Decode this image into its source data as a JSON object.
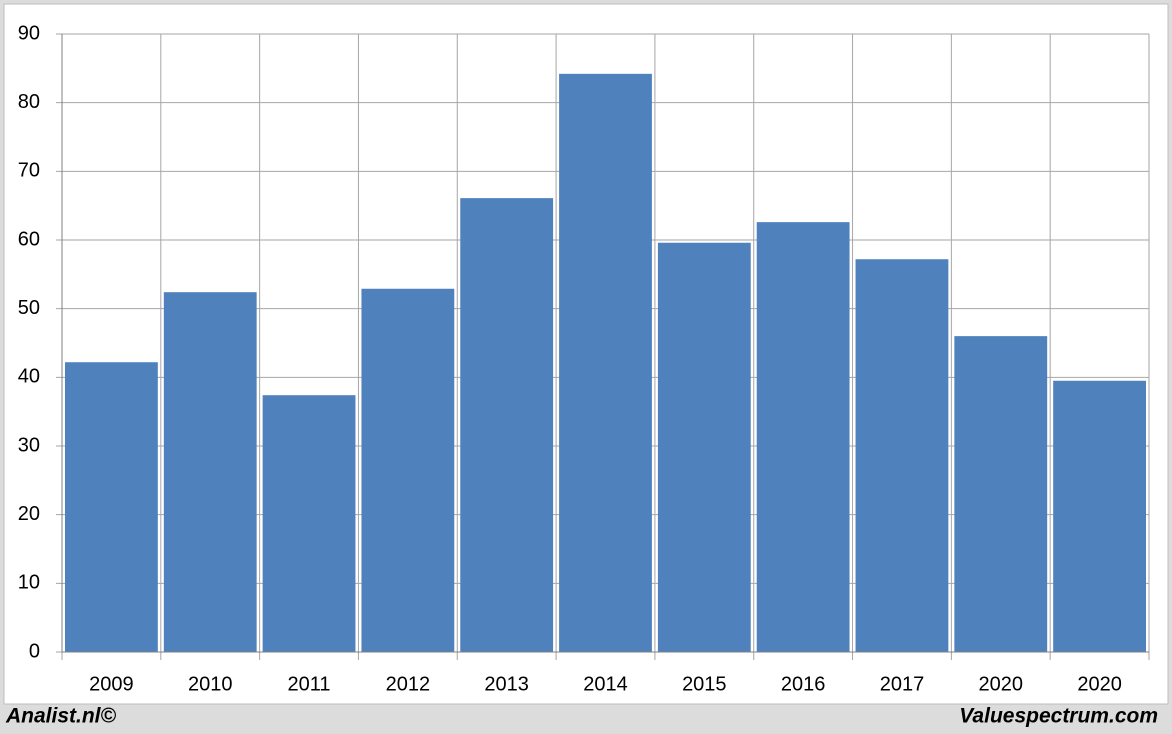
{
  "chart_data": {
    "type": "bar",
    "categories": [
      "2009",
      "2010",
      "2011",
      "2012",
      "2013",
      "2014",
      "2015",
      "2016",
      "2017",
      "2020",
      "2020"
    ],
    "values": [
      42.2,
      52.4,
      37.4,
      52.9,
      66.1,
      84.2,
      59.6,
      62.6,
      57.2,
      46.0,
      39.5
    ],
    "color": "#4f81bd",
    "ylim": [
      0,
      90
    ],
    "yticks": [
      0,
      10,
      20,
      30,
      40,
      50,
      60,
      70,
      80,
      90
    ],
    "grid": true
  },
  "footer_left": "Analist.nl©",
  "footer_right": "Valuespectrum.com"
}
